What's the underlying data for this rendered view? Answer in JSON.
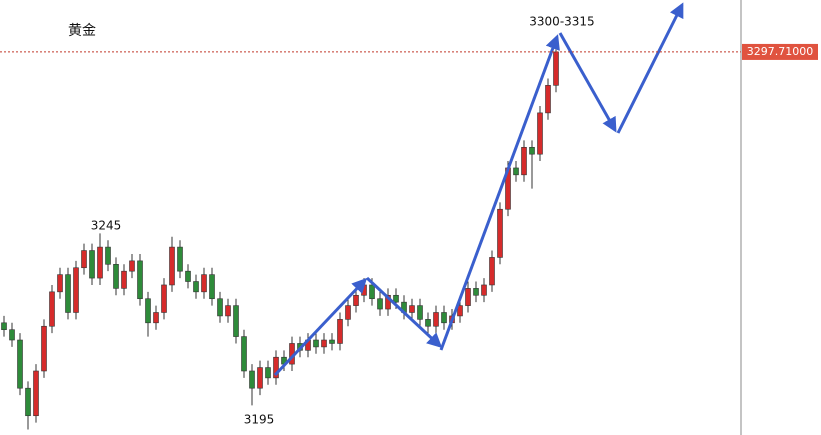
{
  "chart_data": {
    "type": "candlestick",
    "title": "黄金",
    "ylim": [
      3186.4,
      3312.8
    ],
    "up_color": "#d62b2b",
    "down_color": "#2e8b3a",
    "last_price": {
      "value": 3297.71,
      "label": "3297.71000"
    },
    "annotations": [
      "3245",
      "3195",
      "3300-3315"
    ],
    "ohlc": [
      [
        3219,
        3221,
        3215,
        3217
      ],
      [
        3217,
        3219,
        3212,
        3214
      ],
      [
        3214,
        3216,
        3198,
        3200
      ],
      [
        3200,
        3202,
        3188,
        3192
      ],
      [
        3192,
        3207,
        3190,
        3205
      ],
      [
        3205,
        3220,
        3203,
        3218
      ],
      [
        3218,
        3230,
        3216,
        3228
      ],
      [
        3228,
        3235,
        3226,
        3233
      ],
      [
        3233,
        3235,
        3220,
        3222
      ],
      [
        3222,
        3237,
        3220,
        3235
      ],
      [
        3235,
        3242,
        3233,
        3240
      ],
      [
        3240,
        3242,
        3230,
        3232
      ],
      [
        3232,
        3245,
        3230,
        3241
      ],
      [
        3241,
        3243,
        3234,
        3236
      ],
      [
        3236,
        3238,
        3227,
        3229
      ],
      [
        3229,
        3236,
        3227,
        3234
      ],
      [
        3234,
        3239,
        3232,
        3237
      ],
      [
        3237,
        3239,
        3224,
        3226
      ],
      [
        3226,
        3228,
        3215,
        3219
      ],
      [
        3219,
        3224,
        3217,
        3222
      ],
      [
        3222,
        3232,
        3220,
        3230
      ],
      [
        3230,
        3244,
        3228,
        3241
      ],
      [
        3241,
        3243,
        3232,
        3234
      ],
      [
        3234,
        3236,
        3229,
        3231
      ],
      [
        3231,
        3233,
        3226,
        3228
      ],
      [
        3228,
        3235,
        3226,
        3233
      ],
      [
        3233,
        3235,
        3224,
        3226
      ],
      [
        3226,
        3228,
        3219,
        3221
      ],
      [
        3221,
        3226,
        3219,
        3224
      ],
      [
        3224,
        3226,
        3213,
        3215
      ],
      [
        3215,
        3217,
        3203,
        3205
      ],
      [
        3205,
        3207,
        3195,
        3200
      ],
      [
        3200,
        3208,
        3198,
        3206
      ],
      [
        3206,
        3208,
        3201,
        3203
      ],
      [
        3203,
        3211,
        3201,
        3209
      ],
      [
        3209,
        3211,
        3205,
        3207
      ],
      [
        3207,
        3215,
        3205,
        3213
      ],
      [
        3213,
        3215,
        3209,
        3211
      ],
      [
        3211,
        3216,
        3209,
        3214
      ],
      [
        3214,
        3216,
        3210,
        3212
      ],
      [
        3212,
        3216,
        3210,
        3214
      ],
      [
        3214,
        3216,
        3211,
        3213
      ],
      [
        3213,
        3222,
        3211,
        3220
      ],
      [
        3220,
        3226,
        3218,
        3224
      ],
      [
        3224,
        3229,
        3222,
        3227
      ],
      [
        3227,
        3232,
        3225,
        3230
      ],
      [
        3230,
        3232,
        3224,
        3226
      ],
      [
        3226,
        3228,
        3221,
        3223
      ],
      [
        3223,
        3229,
        3221,
        3227
      ],
      [
        3227,
        3229,
        3223,
        3225
      ],
      [
        3225,
        3227,
        3220,
        3222
      ],
      [
        3222,
        3226,
        3220,
        3224
      ],
      [
        3224,
        3226,
        3218,
        3220
      ],
      [
        3220,
        3222,
        3216,
        3218
      ],
      [
        3218,
        3224,
        3216,
        3222
      ],
      [
        3222,
        3224,
        3217,
        3219
      ],
      [
        3219,
        3223,
        3217,
        3221
      ],
      [
        3221,
        3226,
        3219,
        3224
      ],
      [
        3224,
        3231,
        3222,
        3229
      ],
      [
        3229,
        3231,
        3225,
        3227
      ],
      [
        3227,
        3232,
        3225,
        3230
      ],
      [
        3230,
        3240,
        3228,
        3238
      ],
      [
        3238,
        3254,
        3236,
        3252
      ],
      [
        3252,
        3266,
        3250,
        3264
      ],
      [
        3264,
        3266,
        3260,
        3262
      ],
      [
        3262,
        3272,
        3260,
        3270
      ],
      [
        3270,
        3272,
        3258,
        3268
      ],
      [
        3268,
        3282,
        3266,
        3280
      ],
      [
        3280,
        3290,
        3278,
        3288
      ],
      [
        3288,
        3300,
        3286,
        3297.71
      ]
    ]
  }
}
